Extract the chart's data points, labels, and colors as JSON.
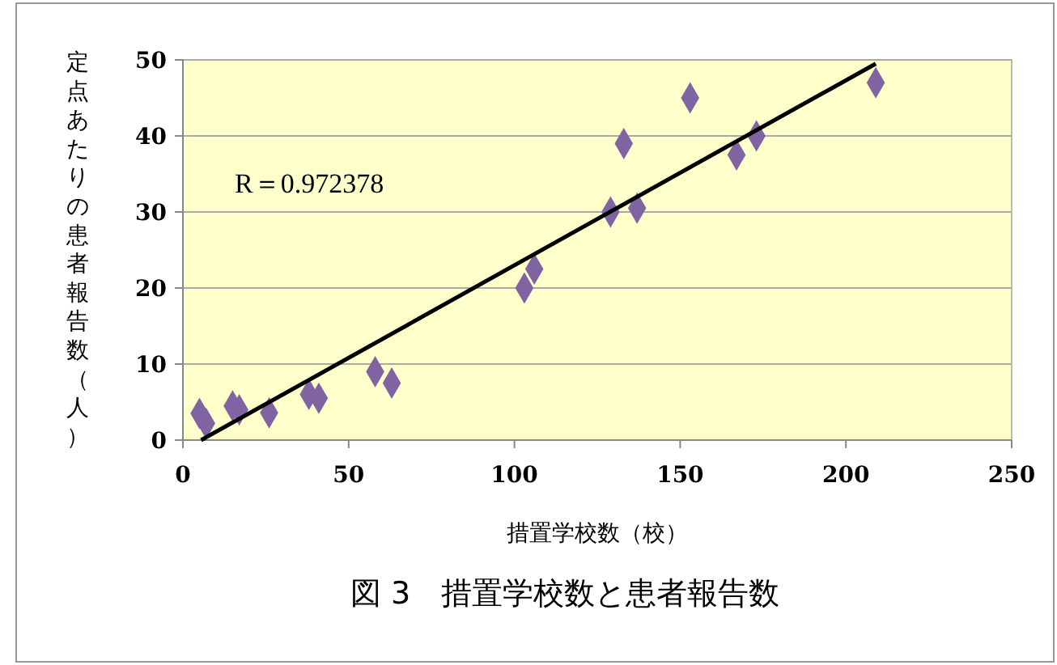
{
  "chart_data": {
    "type": "scatter",
    "title": "図 3　措置学校数と患者報告数",
    "xlabel": "措置学校数（校）",
    "ylabel": "定点あたりの患者報告数（人）",
    "annotations": [
      "R＝0.972378"
    ],
    "xlim": [
      0,
      250
    ],
    "xticks": [
      0,
      50,
      100,
      150,
      200,
      250
    ],
    "ylim": [
      0,
      50
    ],
    "yticks": [
      0,
      10,
      20,
      30,
      40,
      50
    ],
    "grid": "y",
    "series": [
      {
        "color": "#8064a2",
        "marker": "diamond",
        "x": [
          5,
          7,
          15,
          17,
          26,
          38,
          41,
          58,
          63,
          103,
          106,
          129,
          137,
          133,
          153,
          167,
          173,
          209
        ],
        "values": [
          3.5,
          2.2,
          4.5,
          4,
          3.6,
          6,
          5.5,
          9,
          7.5,
          20,
          22.5,
          30,
          30.5,
          39,
          45,
          37.5,
          40,
          47
        ]
      },
      {
        "type": "line",
        "color": "#000000",
        "marker": "none",
        "line_style": "solid",
        "x": [
          5.5,
          209
        ],
        "values": [
          0,
          49.5
        ]
      }
    ]
  }
}
